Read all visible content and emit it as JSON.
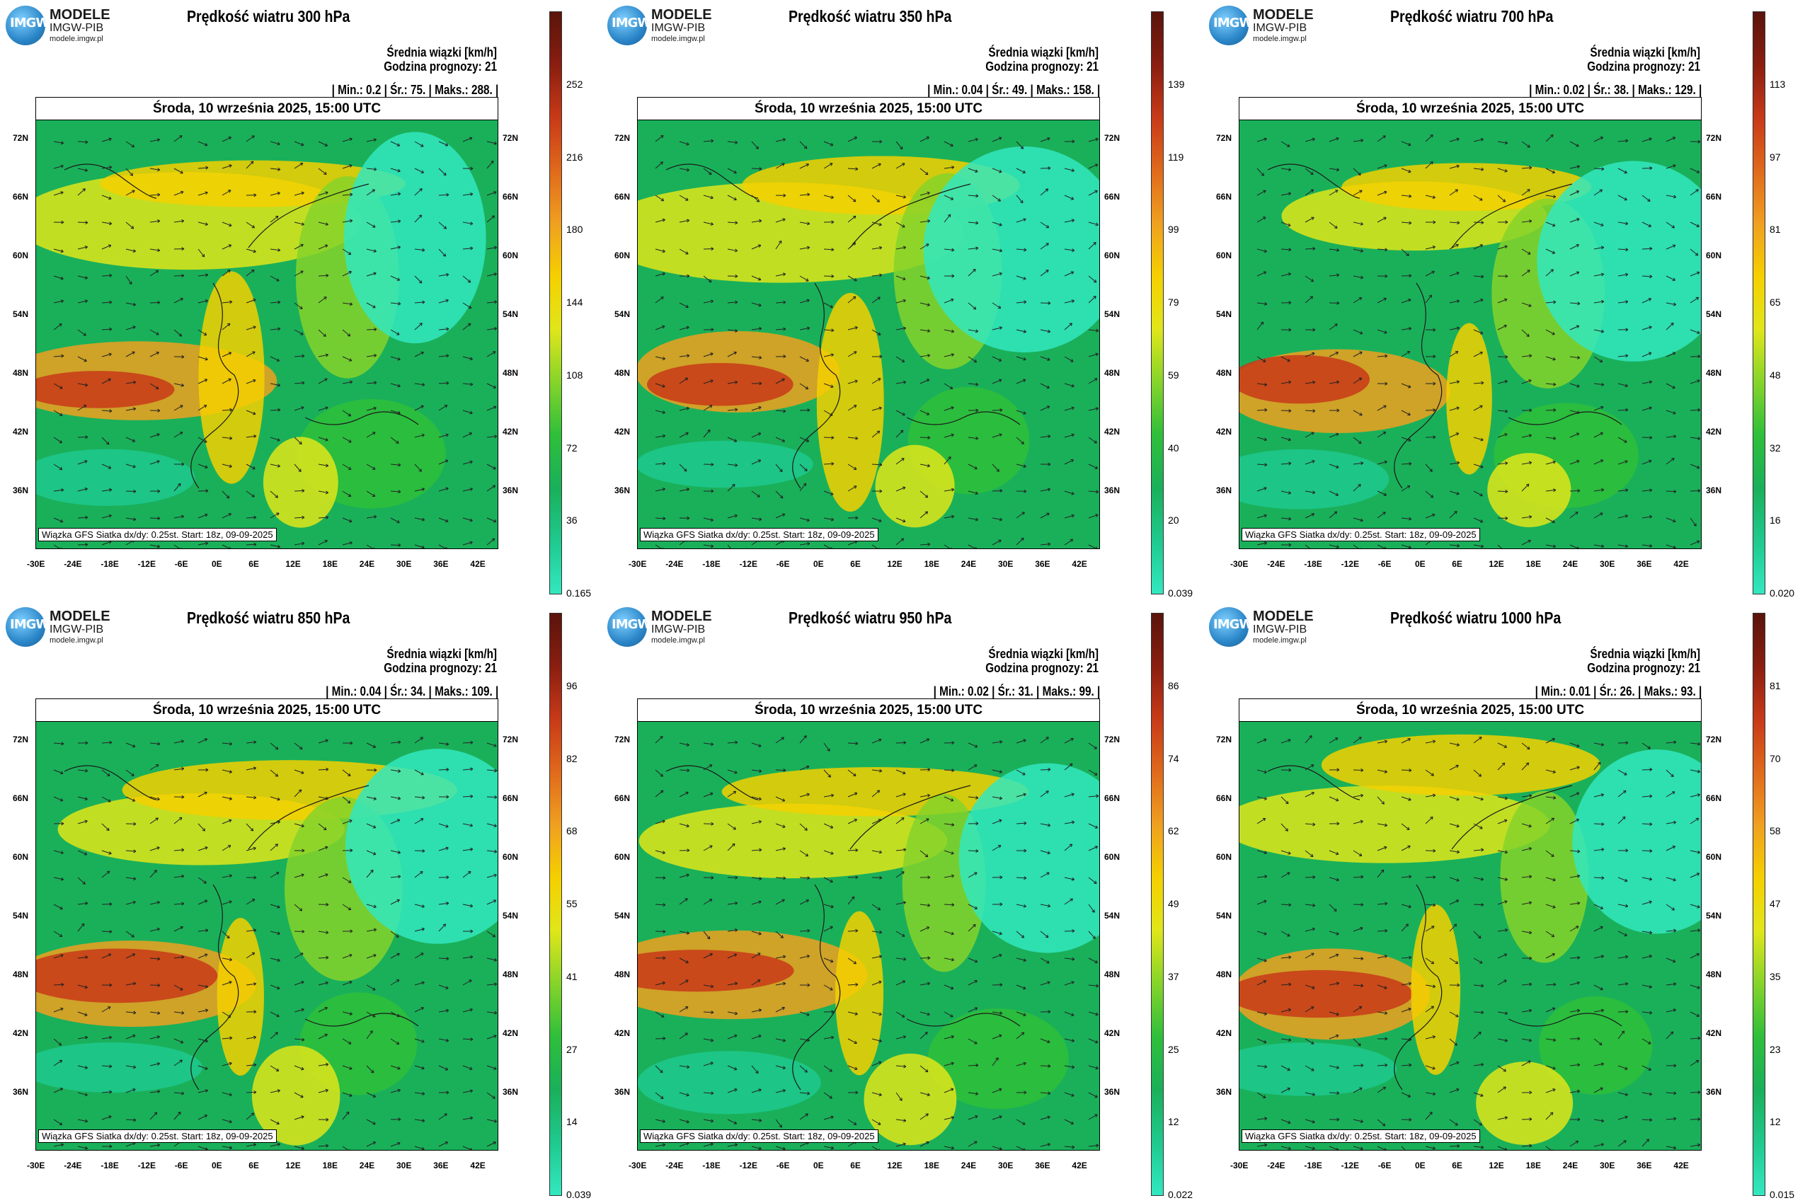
{
  "logo": {
    "line1": "MODELE",
    "line2": "IMGW-PIB",
    "line3": "modele.imgw.pl",
    "badge": "IMGW"
  },
  "common": {
    "unit_label": "Średnia wiązki [km/h]",
    "forecast_hour": "Godzina prognozy: 21",
    "date": "Środa, 10 września 2025, 15:00 UTC",
    "source": "Wiązka GFS Siatka dx/dy: 0.25st. Start: 18z, 09-09-2025",
    "lat_labels": [
      "72N",
      "66N",
      "60N",
      "54N",
      "48N",
      "42N",
      "36N"
    ],
    "lon_labels": [
      "-30E",
      "-24E",
      "-18E",
      "-12E",
      "-6E",
      "0E",
      "6E",
      "12E",
      "18E",
      "24E",
      "30E",
      "36E",
      "42E"
    ]
  },
  "colors": {
    "ramp": [
      "#33e8c0",
      "#1fc98e",
      "#1ab05a",
      "#2fbf3a",
      "#86d42a",
      "#e0e61a",
      "#f5d000",
      "#f0a020",
      "#e06a1c",
      "#c83a18",
      "#8a1e10",
      "#5a140c"
    ],
    "background": "#ffffff"
  },
  "panels": [
    {
      "title": "Prędkość wiatru 300 hPa",
      "stats": "| Min.: 0.2 | Śr.: 75. | Maks.: 288. |",
      "cbar_ticks": [
        "252",
        "216",
        "180",
        "144",
        "108",
        "72",
        "36"
      ],
      "cbar_min": "0.165"
    },
    {
      "title": "Prędkość wiatru 350 hPa",
      "stats": "| Min.: 0.04 | Śr.: 49. | Maks.: 158. |",
      "cbar_ticks": [
        "139",
        "119",
        "99",
        "79",
        "59",
        "40",
        "20"
      ],
      "cbar_min": "0.039"
    },
    {
      "title": "Prędkość wiatru 700 hPa",
      "stats": "| Min.: 0.02 | Śr.: 38. | Maks.: 129. |",
      "cbar_ticks": [
        "113",
        "97",
        "81",
        "65",
        "48",
        "32",
        "16"
      ],
      "cbar_min": "0.020"
    },
    {
      "title": "Prędkość wiatru 850 hPa",
      "stats": "| Min.: 0.04 | Śr.: 34. | Maks.: 109. |",
      "cbar_ticks": [
        "96",
        "82",
        "68",
        "55",
        "41",
        "27",
        "14"
      ],
      "cbar_min": "0.039"
    },
    {
      "title": "Prędkość wiatru 950 hPa",
      "stats": "| Min.: 0.02 | Śr.: 31. | Maks.: 99. |",
      "cbar_ticks": [
        "86",
        "74",
        "62",
        "49",
        "37",
        "25",
        "12"
      ],
      "cbar_min": "0.022"
    },
    {
      "title": "Prędkość wiatru 1000 hPa",
      "stats": "| Min.: 0.01 | Śr.: 26. | Maks.: 93. |",
      "cbar_ticks": [
        "81",
        "70",
        "58",
        "47",
        "35",
        "23",
        "12"
      ],
      "cbar_min": "0.015"
    }
  ]
}
